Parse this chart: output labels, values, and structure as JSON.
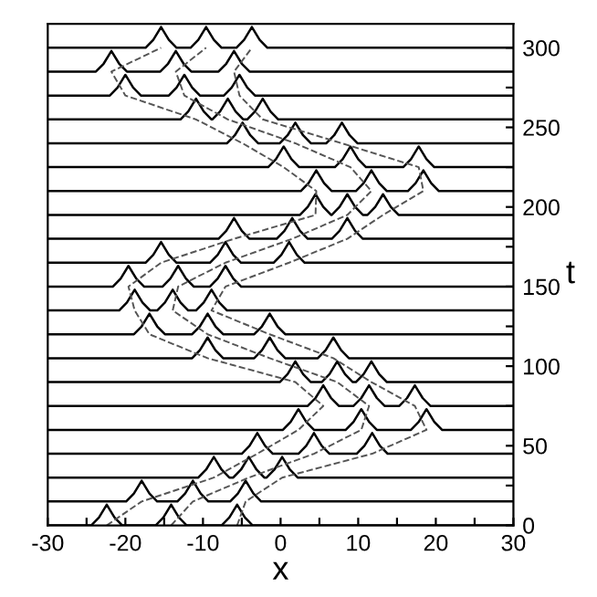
{
  "chart_data": {
    "type": "line",
    "xlabel": "x",
    "ylabel": "t",
    "xlim": [
      -30,
      30
    ],
    "ylim": [
      0,
      315
    ],
    "xticks": [
      -30,
      {
        "value": -25,
        "label": null
      },
      -20,
      {
        "value": -15,
        "label": null
      },
      -10,
      {
        "value": -5,
        "label": null
      },
      0,
      {
        "value": 5,
        "label": null
      },
      10,
      {
        "value": 15,
        "label": null
      },
      20,
      {
        "value": 25,
        "label": null
      },
      30
    ],
    "yticks": [
      0,
      {
        "value": 25,
        "label": null
      },
      50,
      {
        "value": 75,
        "label": null
      },
      100,
      {
        "value": 125,
        "label": null
      },
      150,
      {
        "value": 175,
        "label": null
      },
      200,
      {
        "value": 225,
        "label": null
      },
      250,
      {
        "value": 275,
        "label": null
      },
      300
    ],
    "grid": false,
    "marker": "none",
    "line_style": "solid",
    "series": [
      {
        "color": "#000000",
        "x": [
          -30,
          -24.4,
          -23.4,
          -22.4,
          -21.4,
          -20.4,
          -16.1,
          -15.1,
          -14.1,
          -13.1,
          -12.1,
          -7.6,
          -6.6,
          -5.6,
          -4.6,
          -3.6,
          30
        ],
        "values": [
          0,
          0,
          5,
          13,
          5,
          0,
          0,
          5,
          13,
          5,
          0,
          0,
          5,
          13,
          5,
          0,
          0
        ]
      },
      {
        "color": "#000000",
        "x": [
          -30,
          -19.9,
          -18.9,
          -17.9,
          -16.9,
          -15.9,
          -13.3,
          -12.3,
          -11.3,
          -10.3,
          -9.3,
          -6.5,
          -5.5,
          -4.5,
          -3.5,
          -2.5,
          30
        ],
        "values": [
          15,
          15,
          20,
          28,
          20,
          15,
          15,
          20,
          28,
          20,
          15,
          15,
          20,
          28,
          20,
          15,
          15
        ]
      },
      {
        "color": "#000000",
        "x": [
          -30,
          -10.6,
          -9.6,
          -8.6,
          -7.6,
          -6.6,
          -6.1,
          -5.1,
          -4.1,
          -3.1,
          -2.1,
          -1.8,
          -0.8,
          0.2,
          1.2,
          2.2,
          30
        ],
        "values": [
          30,
          30,
          35,
          43,
          35,
          30,
          30,
          35,
          43,
          35,
          30,
          30,
          35,
          43,
          35,
          30,
          30
        ]
      },
      {
        "color": "#000000",
        "x": [
          -30,
          -5,
          -4,
          -3,
          -2,
          -1,
          2.3,
          3.3,
          4.3,
          5.3,
          6.3,
          9.8,
          10.8,
          11.8,
          12.8,
          13.8,
          30
        ],
        "values": [
          45,
          45,
          50,
          58,
          50,
          45,
          45,
          50,
          58,
          50,
          45,
          45,
          50,
          58,
          50,
          45,
          45
        ]
      },
      {
        "color": "#000000",
        "x": [
          -30,
          0.3,
          1.3,
          2.3,
          3.3,
          4.3,
          8.4,
          9.4,
          10.4,
          11.4,
          12.4,
          16.8,
          17.8,
          18.8,
          19.8,
          20.8,
          30
        ],
        "values": [
          60,
          60,
          65,
          73,
          65,
          60,
          60,
          65,
          73,
          65,
          60,
          60,
          65,
          73,
          65,
          60,
          60
        ]
      },
      {
        "color": "#000000",
        "x": [
          -30,
          3.5,
          4.5,
          5.5,
          6.5,
          7.5,
          9.4,
          10.4,
          11.4,
          12.4,
          13.4,
          15.3,
          16.3,
          17.3,
          18.3,
          19.3,
          30
        ],
        "values": [
          75,
          75,
          80,
          88,
          80,
          75,
          75,
          80,
          88,
          80,
          75,
          75,
          80,
          88,
          80,
          75,
          75
        ]
      },
      {
        "color": "#000000",
        "x": [
          -30,
          -0.1,
          0.9,
          1.9,
          2.9,
          3.9,
          5.3,
          6.3,
          7.3,
          8.3,
          9.3,
          9.7,
          10.7,
          11.7,
          12.7,
          13.7,
          30
        ],
        "values": [
          90,
          90,
          95,
          103,
          95,
          90,
          90,
          95,
          103,
          95,
          90,
          90,
          95,
          103,
          95,
          90,
          90
        ]
      },
      {
        "color": "#000000",
        "x": [
          -30,
          -11.4,
          -10.4,
          -9.4,
          -8.4,
          -7.4,
          -3.4,
          -2.4,
          -1.4,
          -0.4,
          0.6,
          4.8,
          5.8,
          6.8,
          7.8,
          8.8,
          30
        ],
        "values": [
          105,
          105,
          110,
          118,
          110,
          105,
          105,
          110,
          118,
          110,
          105,
          105,
          110,
          118,
          110,
          105,
          105
        ]
      },
      {
        "color": "#000000",
        "x": [
          -30,
          -18.9,
          -17.9,
          -16.9,
          -15.9,
          -14.9,
          -11.4,
          -10.4,
          -9.4,
          -8.4,
          -7.4,
          -3.4,
          -2.4,
          -1.4,
          -0.4,
          0.6,
          30
        ],
        "values": [
          120,
          120,
          125,
          133,
          125,
          120,
          120,
          125,
          133,
          125,
          120,
          120,
          125,
          133,
          125,
          120,
          120
        ]
      },
      {
        "color": "#000000",
        "x": [
          -30,
          -20.8,
          -19.8,
          -18.8,
          -17.8,
          -16.8,
          -15.9,
          -14.9,
          -13.9,
          -12.9,
          -11.9,
          -10.9,
          -9.9,
          -8.9,
          -7.9,
          -6.9,
          30
        ],
        "values": [
          135,
          135,
          140,
          148,
          140,
          135,
          135,
          140,
          148,
          140,
          135,
          135,
          140,
          148,
          140,
          135,
          135
        ]
      },
      {
        "color": "#000000",
        "x": [
          -30,
          -21.6,
          -20.6,
          -19.6,
          -18.6,
          -17.6,
          -15.2,
          -14.2,
          -13.2,
          -12.2,
          -11.2,
          -9.1,
          -8.1,
          -7.1,
          -6.1,
          -5.1,
          30
        ],
        "values": [
          150,
          150,
          155,
          163,
          155,
          150,
          150,
          155,
          163,
          155,
          150,
          150,
          155,
          163,
          155,
          150,
          150
        ]
      },
      {
        "color": "#000000",
        "x": [
          -30,
          -17.4,
          -16.4,
          -15.4,
          -14.4,
          -13.4,
          -9.1,
          -8.1,
          -7.1,
          -6.1,
          -5.1,
          -0.9,
          0.1,
          1.1,
          2.1,
          3.1,
          30
        ],
        "values": [
          165,
          165,
          170,
          178,
          170,
          165,
          165,
          170,
          178,
          170,
          165,
          165,
          170,
          178,
          170,
          165,
          165
        ]
      },
      {
        "color": "#000000",
        "x": [
          -30,
          -8,
          -7,
          -6,
          -5,
          -4,
          -0.5,
          0.5,
          1.5,
          2.5,
          3.5,
          6.6,
          7.6,
          8.6,
          9.6,
          10.6,
          30
        ],
        "values": [
          180,
          180,
          185,
          193,
          185,
          180,
          180,
          185,
          193,
          185,
          180,
          180,
          185,
          193,
          185,
          180,
          180
        ]
      },
      {
        "color": "#000000",
        "x": [
          -30,
          2.5,
          3.5,
          4.5,
          5.5,
          6.5,
          6.6,
          7.6,
          8.6,
          9.6,
          10.6,
          11.2,
          12.2,
          13.2,
          14.2,
          15.2,
          30
        ],
        "values": [
          195,
          195,
          200,
          208,
          200,
          195,
          195,
          200,
          208,
          200,
          195,
          195,
          200,
          208,
          200,
          195,
          195
        ]
      },
      {
        "color": "#000000",
        "x": [
          -30,
          2.6,
          3.6,
          4.6,
          5.6,
          6.6,
          9.7,
          10.7,
          11.7,
          12.7,
          13.7,
          16.4,
          17.4,
          18.4,
          19.4,
          20.4,
          30
        ],
        "values": [
          210,
          210,
          215,
          223,
          215,
          210,
          210,
          215,
          223,
          215,
          210,
          210,
          215,
          223,
          215,
          210,
          210
        ]
      },
      {
        "color": "#000000",
        "x": [
          -30,
          -1.6,
          -0.6,
          0.4,
          1.4,
          2.4,
          7,
          8,
          9,
          10,
          11,
          15.8,
          16.8,
          17.8,
          18.8,
          19.8,
          30
        ],
        "values": [
          225,
          225,
          230,
          238,
          230,
          225,
          225,
          230,
          238,
          230,
          225,
          225,
          230,
          238,
          230,
          225,
          225
        ]
      },
      {
        "color": "#000000",
        "x": [
          -30,
          -6.9,
          -5.9,
          -4.9,
          -3.9,
          -2.9,
          -0.1,
          0.9,
          1.9,
          2.9,
          3.9,
          5.9,
          6.9,
          7.9,
          8.9,
          9.9,
          30
        ],
        "values": [
          240,
          240,
          245,
          253,
          245,
          240,
          240,
          245,
          253,
          245,
          240,
          240,
          245,
          253,
          245,
          240,
          240
        ]
      },
      {
        "color": "#000000",
        "x": [
          -30,
          -12.9,
          -11.9,
          -10.9,
          -9.9,
          -8.9,
          -8.8,
          -7.8,
          -6.8,
          -5.8,
          -4.8,
          -4.3,
          -3.3,
          -2.3,
          -1.3,
          -0.3,
          30
        ],
        "values": [
          255,
          255,
          260,
          268,
          260,
          255,
          255,
          260,
          268,
          260,
          255,
          255,
          260,
          268,
          260,
          255,
          255
        ]
      },
      {
        "color": "#000000",
        "x": [
          -30,
          -22,
          -21,
          -20,
          -19,
          -18,
          -14.4,
          -13.4,
          -12.4,
          -11.4,
          -10.4,
          -7.3,
          -6.3,
          -5.3,
          -4.3,
          -3.3,
          30
        ],
        "values": [
          270,
          270,
          275,
          283,
          275,
          270,
          270,
          275,
          283,
          275,
          270,
          270,
          275,
          283,
          275,
          270,
          270
        ]
      },
      {
        "color": "#000000",
        "x": [
          -30,
          -23.8,
          -22.8,
          -21.8,
          -20.8,
          -19.8,
          -15.5,
          -14.5,
          -13.5,
          -12.5,
          -11.5,
          -8,
          -7,
          -6,
          -5,
          -4,
          30
        ],
        "values": [
          285,
          285,
          290,
          298,
          290,
          285,
          285,
          290,
          298,
          290,
          285,
          285,
          290,
          298,
          290,
          285,
          285
        ]
      },
      {
        "color": "#000000",
        "x": [
          -30,
          -17.4,
          -16.4,
          -15.4,
          -14.4,
          -13.4,
          -11.6,
          -10.6,
          -9.6,
          -8.6,
          -7.6,
          -5.7,
          -4.7,
          -3.7,
          -2.7,
          -1.7,
          30
        ],
        "values": [
          300,
          300,
          305,
          313,
          305,
          300,
          300,
          305,
          313,
          305,
          300,
          300,
          305,
          313,
          305,
          300,
          300
        ]
      },
      {
        "color": "#555555",
        "line_style": "dashed",
        "x": [
          -22.4,
          -17.9,
          -8.6,
          -3.0,
          2.3,
          5.5,
          1.9,
          -9.4,
          -16.9,
          -18.8,
          -19.6,
          -15.4,
          -6.0,
          4.5,
          4.6,
          0.4,
          -4.9,
          -10.9,
          -20.0,
          -21.8,
          -15.4
        ],
        "values": [
          0,
          15,
          30,
          45,
          60,
          75,
          90,
          105,
          120,
          135,
          150,
          165,
          180,
          195,
          210,
          225,
          240,
          255,
          270,
          285,
          300
        ]
      },
      {
        "color": "#555555",
        "line_style": "dashed",
        "x": [
          -14.1,
          -11.3,
          -4.1,
          4.3,
          10.4,
          11.4,
          7.3,
          -1.4,
          -9.4,
          -13.9,
          -13.2,
          -7.1,
          1.5,
          8.6,
          11.7,
          9.0,
          1.9,
          -6.8,
          -12.4,
          -13.5,
          -9.6
        ],
        "values": [
          0,
          15,
          30,
          45,
          60,
          75,
          90,
          105,
          120,
          135,
          150,
          165,
          180,
          195,
          210,
          225,
          240,
          255,
          270,
          285,
          300
        ]
      },
      {
        "color": "#555555",
        "line_style": "dashed",
        "x": [
          -5.6,
          -4.5,
          0.2,
          11.8,
          18.8,
          17.3,
          11.7,
          6.8,
          -1.4,
          -8.9,
          -7.1,
          1.1,
          8.6,
          13.2,
          18.4,
          17.8,
          7.9,
          -2.3,
          -5.3,
          -6.0,
          -3.7
        ],
        "values": [
          0,
          15,
          30,
          45,
          60,
          75,
          90,
          105,
          120,
          135,
          150,
          165,
          180,
          195,
          210,
          225,
          240,
          255,
          270,
          285,
          300
        ]
      }
    ]
  }
}
